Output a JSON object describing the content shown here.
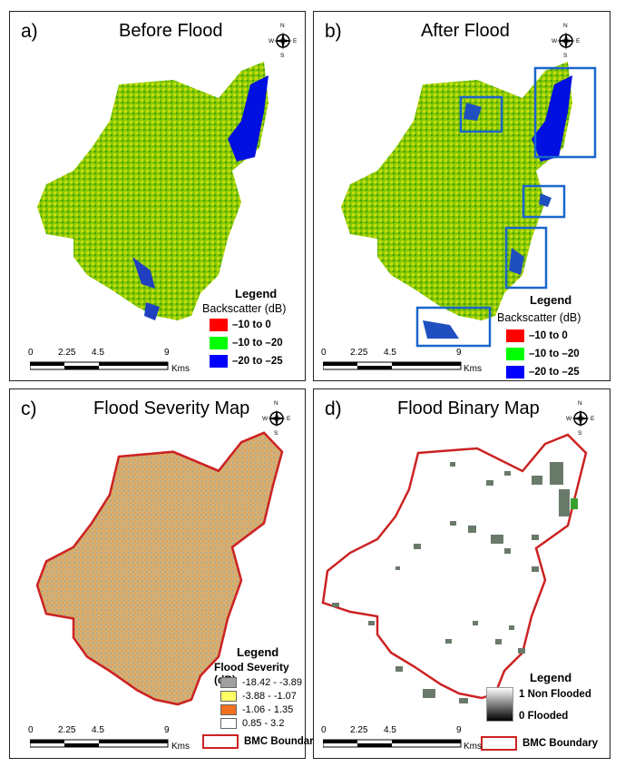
{
  "panels": [
    {
      "id": "a",
      "label": "a)",
      "title": "Before Flood"
    },
    {
      "id": "b",
      "label": "b)",
      "title": "After Flood"
    },
    {
      "id": "c",
      "label": "c)",
      "title": "Flood Severity Map"
    },
    {
      "id": "d",
      "label": "d)",
      "title": "Flood Binary Map"
    }
  ],
  "compass": {
    "n": "N",
    "s": "S",
    "e": "E",
    "w": "W"
  },
  "scale": {
    "ticks": [
      "0",
      "2.25",
      "4.5",
      "9"
    ],
    "unit": "Kms"
  },
  "legend": {
    "title": "Legend",
    "backscatter_title": "Backscatter (dB)",
    "backscatter_classes": [
      {
        "label": "–10 to 0",
        "color": "#ff0000"
      },
      {
        "label": "–10 to –20",
        "color": "#00ff00"
      },
      {
        "label": "–20 to –25",
        "color": "#0000ff"
      }
    ],
    "severity_title": "Flood Severity (dB)",
    "severity_classes": [
      {
        "label": "-18.42 - -3.89",
        "color": "#a0a0a0"
      },
      {
        "label": "-3.88 - -1.07",
        "color": "#ffff66"
      },
      {
        "label": "-1.06 - 1.35",
        "color": "#f07020"
      },
      {
        "label": "0.85 - 3.2",
        "color": "#ffffff"
      }
    ],
    "binary_high": "1 Non Flooded",
    "binary_low": "0 Flooded",
    "boundary_label": "BMC Boundary",
    "boundary_color": "#cc2222"
  },
  "colors": {
    "veg": "#6cc000",
    "veg_light": "#c8d800",
    "water": "#0010e0",
    "highlight": "#1a66cc",
    "severity_fill": "#d8b070",
    "binary_patch": "#6a7a6a"
  }
}
